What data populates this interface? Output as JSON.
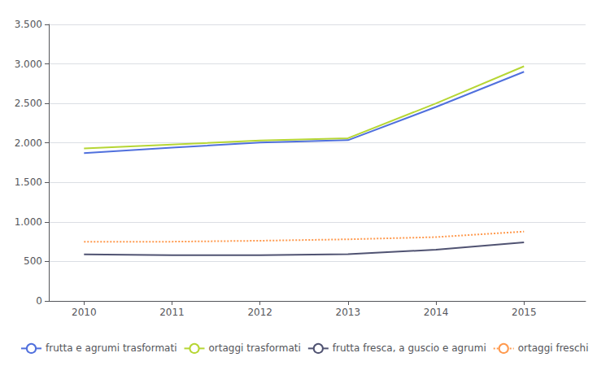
{
  "chart_data": {
    "type": "line",
    "x": [
      2010,
      2011,
      2012,
      2013,
      2014,
      2015
    ],
    "series": [
      {
        "name": "frutta e agrumi trasformati",
        "values": [
          1870,
          1940,
          2005,
          2035,
          2455,
          2900
        ],
        "line_style": "solid"
      },
      {
        "name": "ortaggi trasformati",
        "values": [
          1930,
          1980,
          2030,
          2060,
          2500,
          2970
        ],
        "line_style": "solid"
      },
      {
        "name": "frutta fresca, a guscio e agrumi",
        "values": [
          590,
          578,
          578,
          592,
          648,
          742
        ],
        "line_style": "solid"
      },
      {
        "name": "ortaggi freschi",
        "values": [
          750,
          750,
          762,
          780,
          808,
          878
        ],
        "line_style": "dotted"
      }
    ],
    "xlim": [
      2009.6,
      2015.7
    ],
    "xticks": [
      2010,
      2011,
      2012,
      2013,
      2014,
      2015
    ],
    "ylim": [
      0,
      3500
    ],
    "yticks": [
      0,
      500,
      {
        "value": 1000,
        "label": "1.000"
      },
      {
        "value": 1500,
        "label": "1.500"
      },
      {
        "value": 2000,
        "label": "2.000"
      },
      {
        "value": 2500,
        "label": "2.500"
      },
      {
        "value": 3000,
        "label": "3.000"
      },
      {
        "value": 3500,
        "label": "3.500"
      }
    ],
    "grid": true,
    "legend": "lower left"
  }
}
